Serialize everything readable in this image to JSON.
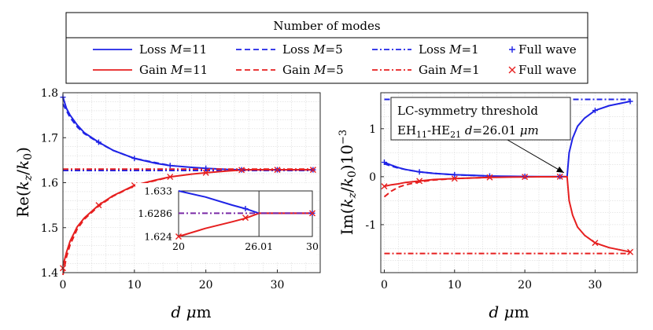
{
  "legend": {
    "title": "Number of modes",
    "entries": [
      {
        "label": "Loss M=11",
        "prefix": "Loss ",
        "m": "M",
        "eq": "=11",
        "color": "#1f23e6",
        "style": "solid"
      },
      {
        "label": "Loss M=5",
        "prefix": "Loss ",
        "m": "M",
        "eq": "=5",
        "color": "#1f23e6",
        "style": "dashed"
      },
      {
        "label": "Loss M=1",
        "prefix": "Loss ",
        "m": "M",
        "eq": "=1",
        "color": "#1f23e6",
        "style": "dashdot"
      },
      {
        "label": "Full wave",
        "prefix": "Full wave",
        "m": "",
        "eq": "",
        "color": "#1f23e6",
        "style": "plus"
      },
      {
        "label": "Gain M=11",
        "prefix": "Gain ",
        "m": "M",
        "eq": "=11",
        "color": "#e61f1f",
        "style": "solid"
      },
      {
        "label": "Gain M=5",
        "prefix": "Gain ",
        "m": "M",
        "eq": "=5",
        "color": "#e61f1f",
        "style": "dashed"
      },
      {
        "label": "Gain M=1",
        "prefix": "Gain ",
        "m": "M",
        "eq": "=1",
        "color": "#e61f1f",
        "style": "dashdot"
      },
      {
        "label": "Full wave",
        "prefix": "Full wave",
        "m": "",
        "eq": "",
        "color": "#e61f1f",
        "style": "cross"
      }
    ]
  },
  "colors": {
    "loss": "#1f23e6",
    "gain": "#e61f1f"
  },
  "chart_data": [
    {
      "type": "line",
      "id": "left",
      "xlabel": "d μm",
      "ylabel": "Re(kz/k0)",
      "xlim": [
        0,
        36
      ],
      "ylim": [
        1.4,
        1.8
      ],
      "xticks": [
        0,
        10,
        20,
        30
      ],
      "yticks": [
        1.4,
        1.5,
        1.6,
        1.7,
        1.8
      ],
      "grid": true,
      "series": [
        {
          "name": "Loss M=11",
          "x": [
            0,
            0.5,
            1,
            2,
            3,
            5,
            7,
            10,
            13,
            15,
            18,
            20,
            23,
            25,
            26,
            28,
            30,
            33,
            35
          ],
          "values": [
            1.79,
            1.765,
            1.75,
            1.728,
            1.711,
            1.69,
            1.672,
            1.654,
            1.643,
            1.638,
            1.634,
            1.632,
            1.6295,
            1.6287,
            1.6286,
            1.6286,
            1.6286,
            1.6286,
            1.6286
          ]
        },
        {
          "name": "Loss M=5",
          "x": [
            0,
            0.5,
            1,
            2,
            3,
            5,
            7,
            10,
            15
          ],
          "values": [
            1.775,
            1.76,
            1.745,
            1.724,
            1.709,
            1.689,
            1.672,
            1.654,
            1.638
          ]
        },
        {
          "name": "Loss M=1",
          "x": [
            0,
            35
          ],
          "values": [
            1.627,
            1.627
          ]
        },
        {
          "name": "Gain M=11",
          "x": [
            0,
            0.5,
            1,
            2,
            3,
            5,
            7,
            10,
            13,
            15,
            18,
            20,
            23,
            25,
            26,
            28,
            30,
            33,
            35
          ],
          "values": [
            1.415,
            1.445,
            1.47,
            1.502,
            1.522,
            1.55,
            1.571,
            1.594,
            1.606,
            1.613,
            1.619,
            1.622,
            1.626,
            1.6282,
            1.6286,
            1.6286,
            1.6286,
            1.6286,
            1.6286
          ]
        },
        {
          "name": "Gain M=5",
          "x": [
            0,
            0.5,
            1,
            2,
            3,
            5,
            7,
            10,
            15
          ],
          "values": [
            1.395,
            1.435,
            1.462,
            1.497,
            1.519,
            1.548,
            1.57,
            1.593,
            1.613
          ]
        },
        {
          "name": "Gain M=1",
          "x": [
            0,
            35
          ],
          "values": [
            1.63,
            1.63
          ]
        },
        {
          "name": "Full wave (loss)",
          "x": [
            0,
            5,
            10,
            15,
            20,
            25,
            30,
            35
          ],
          "values": [
            1.79,
            1.69,
            1.654,
            1.638,
            1.632,
            1.6287,
            1.6286,
            1.6286
          ]
        },
        {
          "name": "Full wave (gain)",
          "x": [
            0,
            5,
            10,
            15,
            20,
            25,
            30,
            35
          ],
          "values": [
            1.41,
            1.55,
            1.594,
            1.613,
            1.622,
            1.6282,
            1.6286,
            1.6286
          ]
        }
      ],
      "inset": {
        "xlim": [
          20,
          30
        ],
        "ylim": [
          1.624,
          1.633
        ],
        "xticks": [
          20,
          26.01,
          30
        ],
        "xtick_labels": [
          "20",
          "26.01",
          "30"
        ],
        "yticks": [
          1.624,
          1.6286,
          1.633
        ],
        "ytick_labels": [
          "1.624",
          "1.6286",
          "1.633"
        ],
        "vline": 26.01,
        "series": [
          {
            "name": "Loss M=11",
            "x": [
              20,
              22,
              24,
              25,
              26.01,
              30
            ],
            "values": [
              1.633,
              1.6318,
              1.6302,
              1.6295,
              1.6286,
              1.6286
            ]
          },
          {
            "name": "Gain M=11",
            "x": [
              20,
              22,
              24,
              25,
              26.01,
              30
            ],
            "values": [
              1.624,
              1.6256,
              1.6269,
              1.6276,
              1.6286,
              1.6286
            ]
          },
          {
            "name": "M=1",
            "x": [
              20,
              30
            ],
            "values": [
              1.6286,
              1.6286
            ]
          },
          {
            "name": "Full wave (loss)",
            "x": [
              25,
              30
            ],
            "values": [
              1.6295,
              1.6286
            ]
          },
          {
            "name": "Full wave (gain)",
            "x": [
              20,
              25,
              30
            ],
            "values": [
              1.624,
              1.6277,
              1.6286
            ]
          }
        ]
      }
    },
    {
      "type": "line",
      "id": "right",
      "xlabel": "d μm",
      "ylabel": "Im(kz/k0)10^-3",
      "xlim": [
        -0.5,
        36
      ],
      "ylim": [
        -2.0,
        1.75
      ],
      "xticks": [
        0,
        10,
        20,
        30
      ],
      "yticks": [
        -1,
        0,
        1
      ],
      "ytick_labels": [
        "-1",
        "0",
        "1"
      ],
      "grid": true,
      "annotation": {
        "line1": "LC-symmetry threshold",
        "line2_a": "EH",
        "line2_a_sub": "11",
        "line2_b": "-HE",
        "line2_b_sub": "21",
        "line2_c": " d",
        "line2_d": "=26.01 ",
        "line2_e": "μm",
        "target_x": 26.01,
        "target_y": 0
      },
      "series": [
        {
          "name": "Loss M=11",
          "x": [
            0,
            1,
            2,
            3,
            5,
            7,
            10,
            13,
            15,
            18,
            20,
            22,
            24,
            25.5,
            26.01,
            26.3,
            26.8,
            27.5,
            28.5,
            30,
            32,
            35
          ],
          "values": [
            0.3,
            0.24,
            0.19,
            0.15,
            0.1,
            0.07,
            0.04,
            0.025,
            0.015,
            0.008,
            0.005,
            0.003,
            0.0015,
            0.0005,
            0,
            0.5,
            0.8,
            1.05,
            1.22,
            1.38,
            1.48,
            1.57
          ]
        },
        {
          "name": "Loss M=5",
          "x": [
            0,
            1,
            2,
            3,
            5,
            7,
            10,
            15
          ],
          "values": [
            0.27,
            0.22,
            0.18,
            0.15,
            0.1,
            0.07,
            0.04,
            0.015
          ]
        },
        {
          "name": "Loss M=1",
          "x": [
            0,
            35
          ],
          "values": [
            1.61,
            1.61
          ]
        },
        {
          "name": "Gain M=11",
          "x": [
            0,
            1,
            2,
            3,
            5,
            7,
            10,
            13,
            15,
            18,
            20,
            22,
            24,
            25.5,
            26.01,
            26.3,
            26.8,
            27.5,
            28.5,
            30,
            32,
            35
          ],
          "values": [
            -0.2,
            -0.17,
            -0.15,
            -0.12,
            -0.09,
            -0.06,
            -0.04,
            -0.025,
            -0.015,
            -0.008,
            -0.005,
            -0.003,
            -0.0015,
            -0.0005,
            0,
            -0.5,
            -0.8,
            -1.05,
            -1.22,
            -1.38,
            -1.48,
            -1.57
          ]
        },
        {
          "name": "Gain M=5",
          "x": [
            0,
            1,
            2,
            3,
            5,
            7,
            10,
            15
          ],
          "values": [
            -0.42,
            -0.3,
            -0.22,
            -0.17,
            -0.11,
            -0.07,
            -0.04,
            -0.015
          ]
        },
        {
          "name": "Gain M=1",
          "x": [
            0,
            35
          ],
          "values": [
            -1.6,
            -1.6
          ]
        },
        {
          "name": "Full wave (loss)",
          "x": [
            0,
            5,
            10,
            15,
            20,
            25,
            30,
            35
          ],
          "values": [
            0.3,
            0.1,
            0.04,
            0.015,
            0.005,
            0.001,
            1.38,
            1.57
          ]
        },
        {
          "name": "Full wave (gain)",
          "x": [
            0,
            5,
            10,
            15,
            20,
            25,
            30,
            35
          ],
          "values": [
            -0.2,
            -0.09,
            -0.04,
            -0.015,
            -0.005,
            -0.001,
            -1.38,
            -1.57
          ]
        }
      ]
    }
  ]
}
